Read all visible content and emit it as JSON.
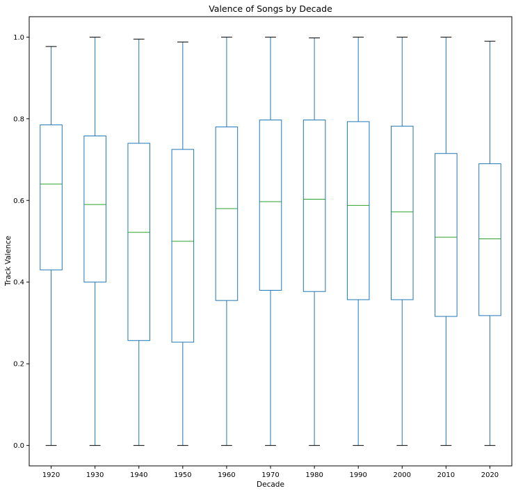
{
  "chart_data": {
    "type": "box",
    "title": "Valence of Songs by Decade",
    "xlabel": "Decade",
    "ylabel": "Track Valence",
    "ylim": [
      -0.05,
      1.05
    ],
    "yticks": [
      0.0,
      0.2,
      0.4,
      0.6,
      0.8,
      1.0
    ],
    "ytick_labels": [
      "0.0",
      "0.2",
      "0.4",
      "0.6",
      "0.8",
      "1.0"
    ],
    "grid": false,
    "colors": {
      "box": "#1f77b4",
      "median": "#2ca02c",
      "whisker_cap": "#000000"
    },
    "categories": [
      "1920",
      "1930",
      "1940",
      "1950",
      "1960",
      "1970",
      "1980",
      "1990",
      "2000",
      "2010",
      "2020"
    ],
    "boxes": [
      {
        "label": "1920",
        "min": 0.0,
        "q1": 0.43,
        "median": 0.64,
        "q3": 0.785,
        "max": 0.977
      },
      {
        "label": "1930",
        "min": 0.0,
        "q1": 0.4,
        "median": 0.59,
        "q3": 0.758,
        "max": 1.0
      },
      {
        "label": "1940",
        "min": 0.0,
        "q1": 0.257,
        "median": 0.522,
        "q3": 0.74,
        "max": 0.995
      },
      {
        "label": "1950",
        "min": 0.0,
        "q1": 0.253,
        "median": 0.5,
        "q3": 0.725,
        "max": 0.988
      },
      {
        "label": "1960",
        "min": 0.0,
        "q1": 0.355,
        "median": 0.58,
        "q3": 0.78,
        "max": 1.0
      },
      {
        "label": "1970",
        "min": 0.0,
        "q1": 0.38,
        "median": 0.597,
        "q3": 0.797,
        "max": 1.0
      },
      {
        "label": "1980",
        "min": 0.0,
        "q1": 0.377,
        "median": 0.603,
        "q3": 0.797,
        "max": 0.998
      },
      {
        "label": "1990",
        "min": 0.0,
        "q1": 0.357,
        "median": 0.588,
        "q3": 0.793,
        "max": 1.0
      },
      {
        "label": "2000",
        "min": 0.0,
        "q1": 0.357,
        "median": 0.572,
        "q3": 0.782,
        "max": 1.0
      },
      {
        "label": "2010",
        "min": 0.0,
        "q1": 0.316,
        "median": 0.51,
        "q3": 0.715,
        "max": 1.0
      },
      {
        "label": "2020",
        "min": 0.0,
        "q1": 0.318,
        "median": 0.506,
        "q3": 0.69,
        "max": 0.99
      }
    ]
  }
}
